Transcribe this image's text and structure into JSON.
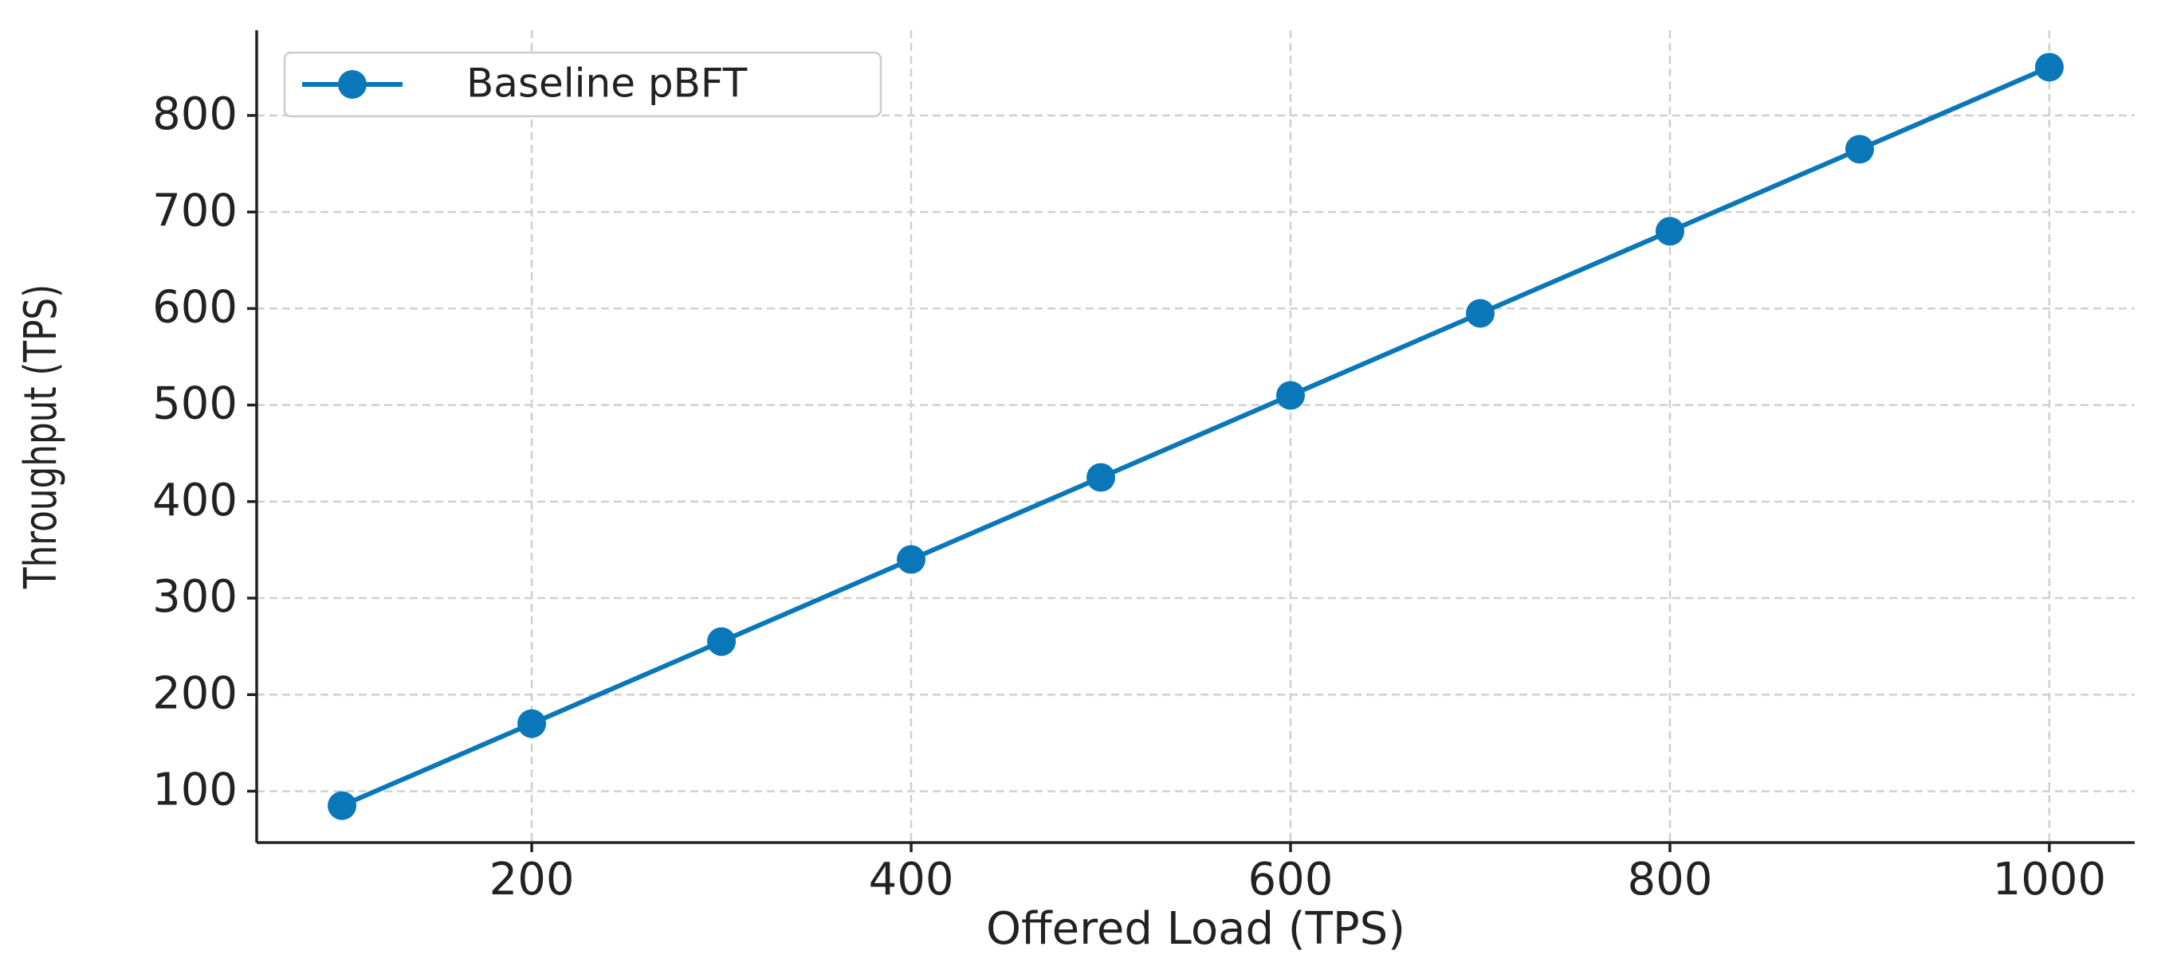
{
  "chart_data": {
    "type": "line",
    "x_label": "Offered Load (TPS)",
    "y_label": "Throughput (TPS)",
    "x": [
      100,
      200,
      300,
      400,
      500,
      600,
      700,
      800,
      900,
      1000
    ],
    "series": [
      {
        "name": "Baseline pBFT",
        "color": "#0a77b8",
        "values": [
          85,
          170,
          255,
          340,
          425,
          510,
          595,
          680,
          765,
          850
        ]
      }
    ],
    "xlim": [
      55,
      1045
    ],
    "xticks": [
      200,
      400,
      600,
      800,
      1000
    ],
    "ylim": [
      46.75,
      888.25
    ],
    "yticks": [
      100,
      200,
      300,
      400,
      500,
      600,
      700,
      800
    ],
    "grid": true,
    "legend": "upper left"
  }
}
